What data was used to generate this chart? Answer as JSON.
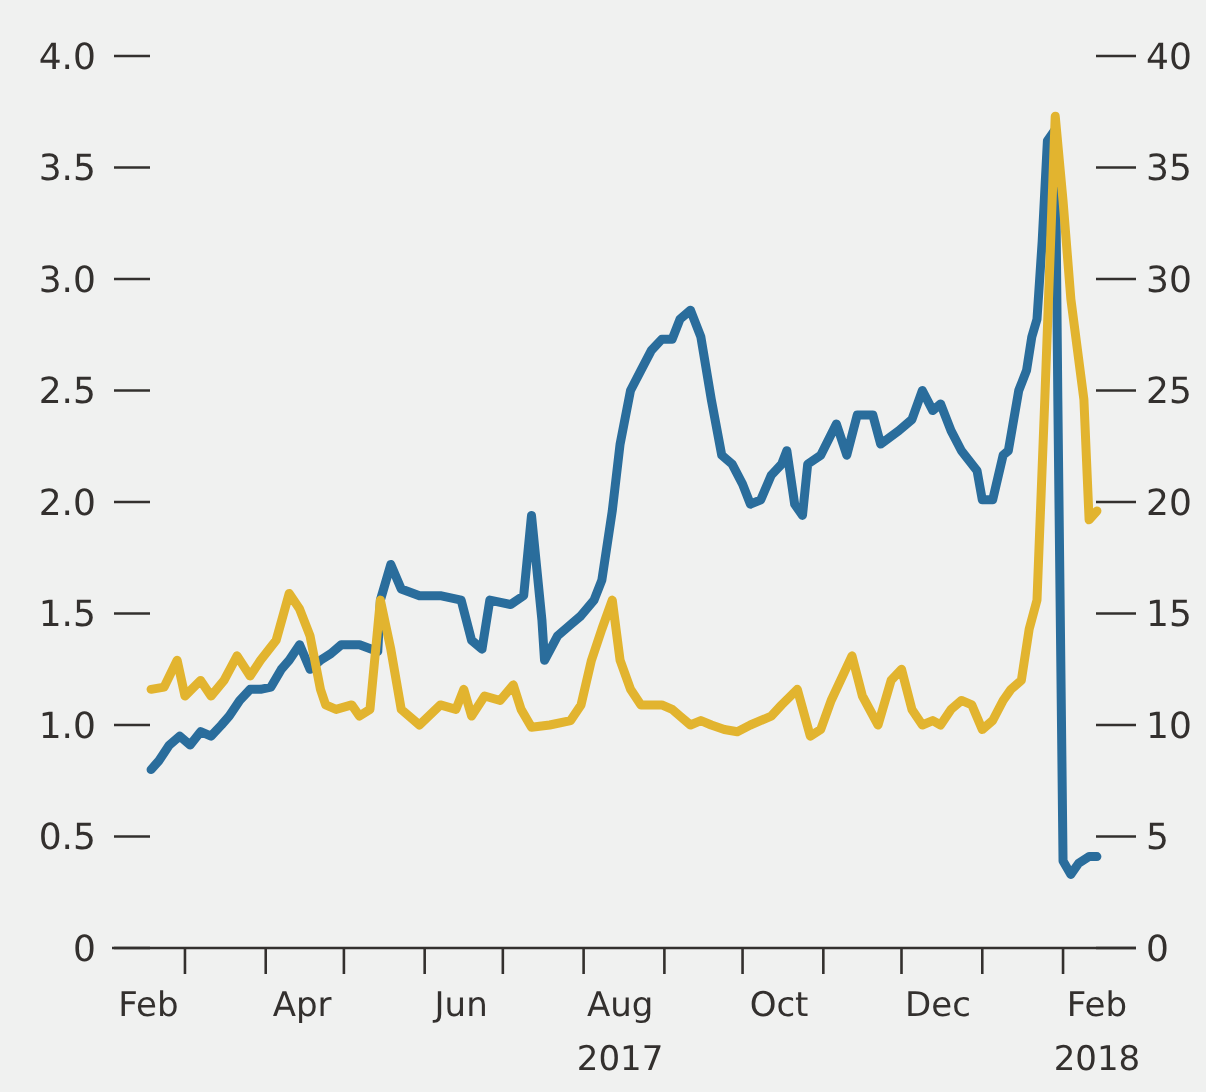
{
  "chart_data": {
    "type": "line",
    "xlim": [
      "2017-02-01",
      "2018-03-01"
    ],
    "xticks": [
      {
        "value": "2017-03-01",
        "label": null
      },
      {
        "value": "2017-04-01",
        "label": null
      },
      {
        "value": "2017-05-01",
        "label": null
      },
      {
        "value": "2017-06-01",
        "label": null
      },
      {
        "value": "2017-07-01",
        "label": null
      },
      {
        "value": "2017-08-01",
        "label": null
      },
      {
        "value": "2017-09-01",
        "label": null
      },
      {
        "value": "2017-10-01",
        "label": null
      },
      {
        "value": "2017-11-01",
        "label": null
      },
      {
        "value": "2017-12-01",
        "label": null
      },
      {
        "value": "2018-01-01",
        "label": null
      },
      {
        "value": "2018-02-01",
        "label": null
      },
      {
        "value": "2017-02-15",
        "label": "Feb"
      },
      {
        "value": "2017-04-15",
        "label": "Apr"
      },
      {
        "value": "2017-06-15",
        "label": "Jun"
      },
      {
        "value": "2017-08-15",
        "label": "Aug\n2017"
      },
      {
        "value": "2017-10-15",
        "label": "Oct"
      },
      {
        "value": "2017-12-15",
        "label": "Dec"
      },
      {
        "value": "2018-02-14",
        "label": "Feb\n2018"
      }
    ],
    "ylim": [
      0,
      4
    ],
    "yticks": [
      0,
      {
        "value": 0.5,
        "label": "0.5"
      },
      {
        "value": 1,
        "label": "1.0"
      },
      {
        "value": 1.5,
        "label": "1.5"
      },
      {
        "value": 2,
        "label": "2.0"
      },
      {
        "value": 2.5,
        "label": "2.5"
      },
      {
        "value": 3,
        "label": "3.0"
      },
      {
        "value": 3.5,
        "label": "3.5"
      },
      {
        "value": 4,
        "label": "4.0"
      }
    ],
    "y2lim": [
      0,
      40
    ],
    "y2ticks": [
      0,
      5,
      10,
      15,
      20,
      25,
      30,
      35,
      40
    ],
    "grid": false,
    "line_style": "solid",
    "marker": "none",
    "series": [
      {
        "color": "#2a6d9c",
        "x": [
          "2017-02-16",
          "2017-02-19",
          "2017-02-23",
          "2017-02-27",
          "2017-03-03",
          "2017-03-07",
          "2017-03-11",
          "2017-03-15",
          "2017-03-18",
          "2017-03-22",
          "2017-03-26",
          "2017-03-30",
          "2017-04-03",
          "2017-04-07",
          "2017-04-10",
          "2017-04-14",
          "2017-04-18",
          "2017-04-22",
          "2017-04-26",
          "2017-04-30",
          "2017-05-07",
          "2017-05-14",
          "2017-05-15",
          "2017-05-19",
          "2017-05-23",
          "2017-05-30",
          "2017-06-07",
          "2017-06-15",
          "2017-06-19",
          "2017-06-23",
          "2017-06-26",
          "2017-07-04",
          "2017-07-09",
          "2017-07-12",
          "2017-07-16",
          "2017-07-17",
          "2017-07-22",
          "2017-07-27",
          "2017-07-31",
          "2017-08-05",
          "2017-08-08",
          "2017-08-12",
          "2017-08-15",
          "2017-08-19",
          "2017-08-23",
          "2017-08-27",
          "2017-08-31",
          "2017-09-04",
          "2017-09-07",
          "2017-09-11",
          "2017-09-15",
          "2017-09-19",
          "2017-09-23",
          "2017-09-27",
          "2017-10-01",
          "2017-10-04",
          "2017-10-08",
          "2017-10-12",
          "2017-10-16",
          "2017-10-18",
          "2017-10-21",
          "2017-10-24",
          "2017-10-26",
          "2017-10-31",
          "2017-11-06",
          "2017-11-10",
          "2017-11-14",
          "2017-11-20",
          "2017-11-23",
          "2017-11-30",
          "2017-12-05",
          "2017-12-09",
          "2017-12-13",
          "2017-12-16",
          "2017-12-20",
          "2017-12-24",
          "2017-12-30",
          "2018-01-01",
          "2018-01-05",
          "2018-01-09",
          "2018-01-11",
          "2018-01-15",
          "2018-01-18",
          "2018-01-20",
          "2018-01-22",
          "2018-01-24",
          "2018-01-26",
          "2018-01-29",
          "2018-01-30",
          "2018-02-01",
          "2018-02-04",
          "2018-02-07",
          "2018-02-11",
          "2018-02-14"
        ],
        "values": [
          0.8,
          0.84,
          0.91,
          0.95,
          0.91,
          0.97,
          0.95,
          1.0,
          1.04,
          1.11,
          1.16,
          1.16,
          1.17,
          1.25,
          1.29,
          1.36,
          1.25,
          1.29,
          1.32,
          1.36,
          1.36,
          1.33,
          1.56,
          1.72,
          1.61,
          1.58,
          1.58,
          1.56,
          1.38,
          1.34,
          1.56,
          1.54,
          1.58,
          1.94,
          1.47,
          1.29,
          1.4,
          1.45,
          1.49,
          1.56,
          1.65,
          1.96,
          2.26,
          2.5,
          2.59,
          2.68,
          2.73,
          2.73,
          2.82,
          2.86,
          2.74,
          2.46,
          2.21,
          2.17,
          2.08,
          1.99,
          2.01,
          2.12,
          2.17,
          2.23,
          1.99,
          1.94,
          2.17,
          2.21,
          2.35,
          2.21,
          2.39,
          2.39,
          2.26,
          2.32,
          2.37,
          2.5,
          2.41,
          2.44,
          2.32,
          2.23,
          2.14,
          2.01,
          2.01,
          2.21,
          2.23,
          2.5,
          2.59,
          2.74,
          2.82,
          3.17,
          3.62,
          3.67,
          2.46,
          0.39,
          0.33,
          0.38,
          0.41,
          0.41
        ]
      },
      {
        "color": "#e2b42f",
        "axis": "y2",
        "x": [
          "2017-02-16",
          "2017-02-21",
          "2017-02-26",
          "2017-03-01",
          "2017-03-07",
          "2017-03-11",
          "2017-03-16",
          "2017-03-21",
          "2017-03-26",
          "2017-03-30",
          "2017-04-05",
          "2017-04-10",
          "2017-04-14",
          "2017-04-18",
          "2017-04-22",
          "2017-04-24",
          "2017-04-28",
          "2017-05-04",
          "2017-05-07",
          "2017-05-11",
          "2017-05-15",
          "2017-05-19",
          "2017-05-23",
          "2017-05-30",
          "2017-06-07",
          "2017-06-13",
          "2017-06-16",
          "2017-06-19",
          "2017-06-24",
          "2017-06-30",
          "2017-07-05",
          "2017-07-08",
          "2017-07-12",
          "2017-07-19",
          "2017-07-27",
          "2017-07-31",
          "2017-08-04",
          "2017-08-08",
          "2017-08-12",
          "2017-08-15",
          "2017-08-19",
          "2017-08-23",
          "2017-08-31",
          "2017-09-04",
          "2017-09-07",
          "2017-09-11",
          "2017-09-15",
          "2017-09-19",
          "2017-09-24",
          "2017-09-29",
          "2017-10-04",
          "2017-10-12",
          "2017-10-16",
          "2017-10-22",
          "2017-10-27",
          "2017-10-31",
          "2017-11-04",
          "2017-11-12",
          "2017-11-16",
          "2017-11-22",
          "2017-11-27",
          "2017-12-01",
          "2017-12-05",
          "2017-12-09",
          "2017-12-13",
          "2017-12-16",
          "2017-12-20",
          "2017-12-24",
          "2017-12-28",
          "2018-01-01",
          "2018-01-05",
          "2018-01-09",
          "2018-01-12",
          "2018-01-16",
          "2018-01-19",
          "2018-01-22",
          "2018-01-25",
          "2018-01-29",
          "2018-02-01",
          "2018-02-04",
          "2018-02-09",
          "2018-02-11",
          "2018-02-14"
        ],
        "values": [
          11.6,
          11.7,
          12.9,
          11.3,
          12.0,
          11.3,
          12.0,
          13.1,
          12.2,
          12.9,
          13.8,
          15.9,
          15.2,
          14.0,
          11.6,
          10.9,
          10.7,
          10.9,
          10.4,
          10.7,
          15.6,
          13.4,
          10.7,
          10.0,
          10.9,
          10.7,
          11.6,
          10.4,
          11.3,
          11.1,
          11.8,
          10.7,
          9.9,
          10.0,
          10.2,
          10.9,
          12.9,
          14.3,
          15.6,
          12.9,
          11.6,
          10.9,
          10.9,
          10.7,
          10.4,
          10.0,
          10.2,
          10.0,
          9.8,
          9.7,
          10.0,
          10.4,
          10.9,
          11.6,
          9.5,
          9.8,
          11.1,
          13.1,
          11.3,
          10.0,
          12.0,
          12.5,
          10.7,
          10.0,
          10.2,
          10.0,
          10.7,
          11.1,
          10.9,
          9.8,
          10.2,
          11.1,
          11.6,
          12.0,
          14.3,
          15.6,
          24.6,
          37.3,
          33.5,
          29.1,
          24.6,
          19.2,
          19.6
        ]
      }
    ]
  }
}
